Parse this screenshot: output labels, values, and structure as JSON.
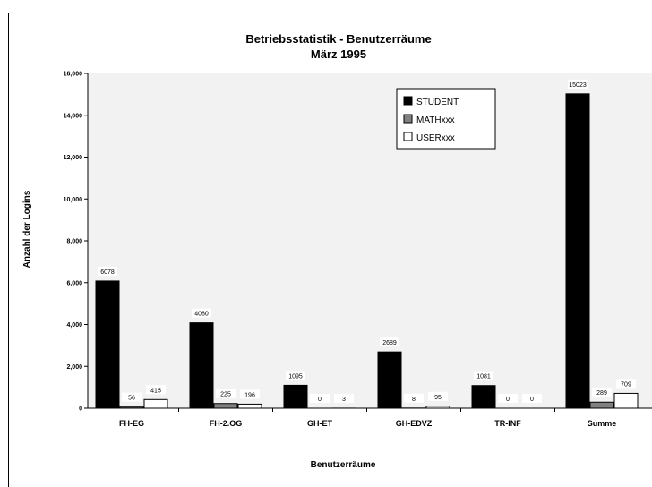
{
  "chart_data": {
    "type": "bar",
    "title": "Betriebsstatistik - Benutzerräume",
    "subtitle": "März 1995",
    "xlabel": "Benutzerräume",
    "ylabel": "Anzahl der Logins",
    "ylim": [
      0,
      16000
    ],
    "yticks": [
      "0",
      "2,000",
      "4,000",
      "6,000",
      "8,000",
      "10,000",
      "12,000",
      "14,000",
      "16,000"
    ],
    "categories": [
      "FH-EG",
      "FH-2.OG",
      "GH-ET",
      "GH-EDVZ",
      "TR-INF",
      "Summe"
    ],
    "series": [
      {
        "name": "STUDENT",
        "values": [
          6078,
          4080,
          1095,
          2689,
          1081,
          15023
        ],
        "color": "#000000"
      },
      {
        "name": "MATHxxx",
        "values": [
          56,
          225,
          0,
          8,
          0,
          289
        ],
        "color": "#808080"
      },
      {
        "name": "USERxxx",
        "values": [
          415,
          196,
          3,
          95,
          0,
          709
        ],
        "color": "#ffffff"
      }
    ],
    "grid": false,
    "legend": "top-right",
    "plot_background": "#f2f2f2"
  }
}
